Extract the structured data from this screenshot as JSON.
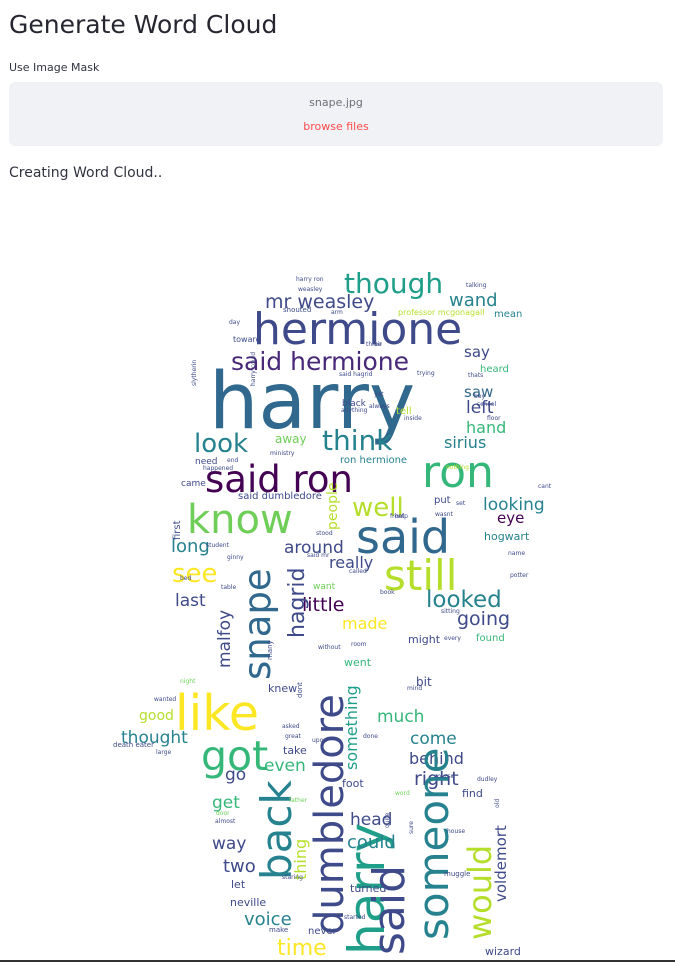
{
  "page": {
    "title": "Generate Word Cloud"
  },
  "mask": {
    "label": "Use Image Mask",
    "file_name": "snape.jpg",
    "browse_label": "browse files"
  },
  "status_text": "Creating Word Cloud..",
  "palette": [
    "#440154",
    "#482878",
    "#3e4a89",
    "#31688e",
    "#26828e",
    "#1f9e89",
    "#35b779",
    "#6ece58",
    "#b5de2b",
    "#fde725"
  ],
  "wordcloud": [
    {
      "t": "harry",
      "c": "#31688e"
    },
    {
      "t": "hermione",
      "c": "#3e4a89"
    },
    {
      "t": "said hermione",
      "c": "#482878"
    },
    {
      "t": "said ron",
      "c": "#440154"
    },
    {
      "t": "ron",
      "c": "#35b779"
    },
    {
      "t": "know",
      "c": "#6ece58"
    },
    {
      "t": "said",
      "c": "#31688e"
    },
    {
      "t": "still",
      "c": "#b5de2b"
    },
    {
      "t": "though",
      "c": "#1f9e89"
    },
    {
      "t": "mr weasley",
      "c": "#3e4a89"
    },
    {
      "t": "wand",
      "c": "#26828e"
    },
    {
      "t": "say",
      "c": "#3e4a89"
    },
    {
      "t": "saw",
      "c": "#31688e"
    },
    {
      "t": "left",
      "c": "#3e4a89"
    },
    {
      "t": "hand",
      "c": "#35b779"
    },
    {
      "t": "sirius",
      "c": "#26828e"
    },
    {
      "t": "look",
      "c": "#26828e"
    },
    {
      "t": "think",
      "c": "#26828e"
    },
    {
      "t": "away",
      "c": "#6ece58"
    },
    {
      "t": "well",
      "c": "#b5de2b"
    },
    {
      "t": "people",
      "c": "#b5de2b"
    },
    {
      "t": "looking",
      "c": "#26828e"
    },
    {
      "t": "eye",
      "c": "#440154"
    },
    {
      "t": "long",
      "c": "#26828e"
    },
    {
      "t": "around",
      "c": "#3e4a89"
    },
    {
      "t": "see",
      "c": "#fde725"
    },
    {
      "t": "really",
      "c": "#3e4a89"
    },
    {
      "t": "last",
      "c": "#3e4a89"
    },
    {
      "t": "looked",
      "c": "#26828e"
    },
    {
      "t": "little",
      "c": "#440154"
    },
    {
      "t": "going",
      "c": "#3e4a89"
    },
    {
      "t": "made",
      "c": "#fde725"
    },
    {
      "t": "snape",
      "c": "#31688e"
    },
    {
      "t": "hagrid",
      "c": "#3e4a89"
    },
    {
      "t": "malfoy",
      "c": "#3e4a89"
    },
    {
      "t": "like",
      "c": "#fde725"
    },
    {
      "t": "dumbledore",
      "c": "#3e4a89"
    },
    {
      "t": "harry",
      "c": "#1f9e89"
    },
    {
      "t": "got",
      "c": "#35b779"
    },
    {
      "t": "back",
      "c": "#26828e"
    },
    {
      "t": "good",
      "c": "#b5de2b"
    },
    {
      "t": "thought",
      "c": "#26828e"
    },
    {
      "t": "much",
      "c": "#35b779"
    },
    {
      "t": "come",
      "c": "#26828e"
    },
    {
      "t": "behind",
      "c": "#3e4a89"
    },
    {
      "t": "right",
      "c": "#3e4a89"
    },
    {
      "t": "even",
      "c": "#35b779"
    },
    {
      "t": "go",
      "c": "#3e4a89"
    },
    {
      "t": "get",
      "c": "#35b779"
    },
    {
      "t": "way",
      "c": "#3e4a89"
    },
    {
      "t": "two",
      "c": "#3e4a89"
    },
    {
      "t": "head",
      "c": "#3e4a89"
    },
    {
      "t": "could",
      "c": "#26828e"
    },
    {
      "t": "thing",
      "c": "#b5de2b"
    },
    {
      "t": "voice",
      "c": "#26828e"
    },
    {
      "t": "time",
      "c": "#fde725"
    },
    {
      "t": "someone",
      "c": "#26828e"
    },
    {
      "t": "would",
      "c": "#b5de2b"
    },
    {
      "t": "voldemort",
      "c": "#3e4a89"
    },
    {
      "t": "said",
      "c": "#3e4a89"
    },
    {
      "t": "something",
      "c": "#1f9e89"
    },
    {
      "t": "hogwart",
      "c": "#26828e"
    },
    {
      "t": "found",
      "c": "#35b779"
    },
    {
      "t": "might",
      "c": "#3e4a89"
    },
    {
      "t": "turned",
      "c": "#3e4a89"
    },
    {
      "t": "neville",
      "c": "#3e4a89"
    },
    {
      "t": "let",
      "c": "#3e4a89"
    },
    {
      "t": "find",
      "c": "#3e4a89"
    },
    {
      "t": "bit",
      "c": "#3e4a89"
    },
    {
      "t": "knew",
      "c": "#3e4a89"
    },
    {
      "t": "went",
      "c": "#35b779"
    },
    {
      "t": "foot",
      "c": "#3e4a89"
    },
    {
      "t": "want",
      "c": "#6ece58"
    },
    {
      "t": "first",
      "c": "#3e4a89"
    },
    {
      "t": "need",
      "c": "#3e4a89"
    },
    {
      "t": "came",
      "c": "#3e4a89"
    },
    {
      "t": "put",
      "c": "#3e4a89"
    },
    {
      "t": "ron hermione",
      "c": "#26828e"
    },
    {
      "t": "said dumbledore",
      "c": "#3e4a89"
    },
    {
      "t": "take",
      "c": "#3e4a89"
    },
    {
      "t": "never",
      "c": "#3e4a89"
    },
    {
      "t": "wizard",
      "c": "#3e4a89"
    },
    {
      "t": "tell",
      "c": "#b5de2b"
    },
    {
      "t": "black",
      "c": "#3e4a89"
    },
    {
      "t": "heard",
      "c": "#35b779"
    },
    {
      "t": "professor mcgonagall",
      "c": "#b5de2b"
    },
    {
      "t": "mean",
      "c": "#26828e"
    },
    {
      "t": "harry ron",
      "c": "#3e4a89"
    },
    {
      "t": "weasley",
      "c": "#3e4a89"
    },
    {
      "t": "shouted",
      "c": "#3e4a89"
    },
    {
      "t": "toward",
      "c": "#3e4a89"
    },
    {
      "t": "day",
      "c": "#3e4a89"
    },
    {
      "t": "slytherin",
      "c": "#3e4a89"
    },
    {
      "t": "yet",
      "c": "#3e4a89"
    },
    {
      "t": "inside",
      "c": "#3e4a89"
    },
    {
      "t": "nothing",
      "c": "#b5de2b"
    },
    {
      "t": "cant",
      "c": "#3e4a89"
    },
    {
      "t": "name",
      "c": "#3e4a89"
    },
    {
      "t": "potter",
      "c": "#3e4a89"
    },
    {
      "t": "stood",
      "c": "#3e4a89"
    },
    {
      "t": "student",
      "c": "#3e4a89"
    },
    {
      "t": "ginny",
      "c": "#3e4a89"
    },
    {
      "t": "called",
      "c": "#3e4a89"
    },
    {
      "t": "bed",
      "c": "#3e4a89"
    },
    {
      "t": "table",
      "c": "#3e4a89"
    },
    {
      "t": "book",
      "c": "#3e4a89"
    },
    {
      "t": "night",
      "c": "#6ece58"
    },
    {
      "t": "wanted",
      "c": "#3e4a89"
    },
    {
      "t": "death eater",
      "c": "#3e4a89"
    },
    {
      "t": "large",
      "c": "#3e4a89"
    },
    {
      "t": "asked",
      "c": "#3e4a89"
    },
    {
      "t": "great",
      "c": "#3e4a89"
    },
    {
      "t": "upon",
      "c": "#3e4a89"
    },
    {
      "t": "done",
      "c": "#3e4a89"
    },
    {
      "t": "dont",
      "c": "#3e4a89"
    },
    {
      "t": "many",
      "c": "#3e4a89"
    },
    {
      "t": "room",
      "c": "#3e4a89"
    },
    {
      "t": "without",
      "c": "#3e4a89"
    },
    {
      "t": "every",
      "c": "#3e4a89"
    },
    {
      "t": "father",
      "c": "#6ece58"
    },
    {
      "t": "word",
      "c": "#6ece58"
    },
    {
      "t": "course",
      "c": "#3e4a89"
    },
    {
      "t": "house",
      "c": "#3e4a89"
    },
    {
      "t": "muggle",
      "c": "#3e4a89"
    },
    {
      "t": "quite",
      "c": "#3e4a89"
    },
    {
      "t": "sure",
      "c": "#3e4a89"
    },
    {
      "t": "staring",
      "c": "#3e4a89"
    },
    {
      "t": "started",
      "c": "#3e4a89"
    },
    {
      "t": "almost",
      "c": "#3e4a89"
    },
    {
      "t": "door",
      "c": "#6ece58"
    },
    {
      "t": "make",
      "c": "#3e4a89"
    },
    {
      "t": "dudley",
      "c": "#3e4a89"
    },
    {
      "t": "old",
      "c": "#3e4a89"
    },
    {
      "t": "set",
      "c": "#3e4a89"
    },
    {
      "t": "front",
      "c": "#3e4a89"
    },
    {
      "t": "help",
      "c": "#3e4a89"
    },
    {
      "t": "wasnt",
      "c": "#3e4a89"
    },
    {
      "t": "thats",
      "c": "#3e4a89"
    },
    {
      "t": "boy",
      "c": "#3e4a89"
    },
    {
      "t": "school",
      "c": "#3e4a89"
    },
    {
      "t": "floor",
      "c": "#3e4a89"
    },
    {
      "t": "talking",
      "c": "#3e4a89"
    },
    {
      "t": "arm",
      "c": "#3e4a89"
    },
    {
      "t": "three",
      "c": "#3e4a89"
    },
    {
      "t": "air",
      "c": "#3e4a89"
    },
    {
      "t": "trying",
      "c": "#3e4a89"
    },
    {
      "t": "harry could",
      "c": "#3e4a89"
    },
    {
      "t": "said hagrid",
      "c": "#3e4a89"
    },
    {
      "t": "anything",
      "c": "#3e4a89"
    },
    {
      "t": "ministry",
      "c": "#3e4a89"
    },
    {
      "t": "end",
      "c": "#3e4a89"
    },
    {
      "t": "happened",
      "c": "#3e4a89"
    },
    {
      "t": "said mr",
      "c": "#3e4a89"
    },
    {
      "t": "mind",
      "c": "#3e4a89"
    },
    {
      "t": "sitting",
      "c": "#3e4a89"
    },
    {
      "t": "always",
      "c": "#3e4a89"
    },
    {
      "t": "light",
      "c": "#3e4a89"
    },
    {
      "t": "man",
      "c": "#3e4a89"
    },
    {
      "t": "rather",
      "c": "#3e4a89"
    }
  ]
}
